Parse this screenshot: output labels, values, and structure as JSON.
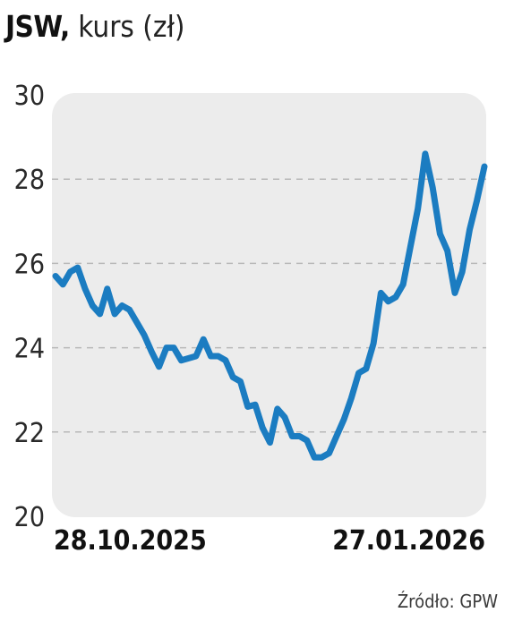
{
  "header": {
    "ticker": "JSW",
    "separator": ",",
    "subtitle": "kurs (zł)"
  },
  "source": "Źródło: GPW",
  "colors": {
    "line": "#1b7cc1",
    "panel": "#ececec",
    "grid": "#b8b8b8",
    "text": "#1e1e1e"
  },
  "chart_data": {
    "type": "line",
    "title": "JSW, kurs (zł)",
    "xlabel": "",
    "ylabel": "",
    "ylim": [
      20,
      30
    ],
    "yticks": [
      20,
      22,
      24,
      26,
      28,
      30
    ],
    "grid": "horizontal dashed",
    "x_start_label": "28.10.2025",
    "x_end_label": "27.01.2026",
    "series": [
      {
        "values": [
          25.7,
          25.5,
          25.8,
          25.9,
          25.4,
          25.0,
          24.8,
          25.4,
          24.8,
          25.0,
          24.9,
          24.6,
          24.3,
          23.9,
          23.55,
          24.0,
          24.0,
          23.7,
          23.75,
          23.8,
          24.2,
          23.8,
          23.8,
          23.7,
          23.3,
          23.2,
          22.6,
          22.65,
          22.1,
          21.75,
          22.55,
          22.35,
          21.9,
          21.9,
          21.8,
          21.4,
          21.4,
          21.5,
          21.9,
          22.3,
          22.8,
          23.4,
          23.5,
          24.1,
          25.3,
          25.1,
          25.2,
          25.5,
          26.4,
          27.3,
          28.6,
          27.8,
          26.7,
          26.3,
          25.3,
          25.8,
          26.8,
          27.5,
          28.3
        ]
      }
    ]
  }
}
